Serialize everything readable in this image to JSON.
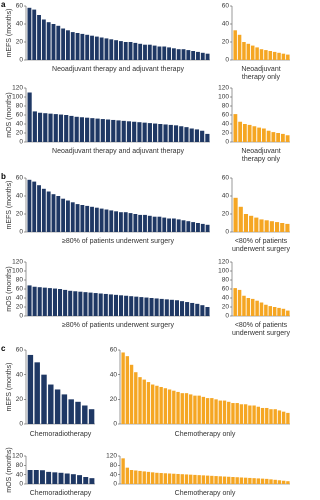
{
  "chart_data": [
    {
      "type": "bar",
      "panel": "a",
      "y_label": "mEFS (months)",
      "x_label": [
        "Neoadjuvant therapy and adjuvant therapy"
      ],
      "color": "#1f3864",
      "ylim": [
        0,
        60
      ],
      "yticks": [
        0,
        20,
        40,
        60
      ],
      "values": [
        58,
        56,
        50,
        45,
        42,
        40,
        38,
        35,
        33,
        31,
        30,
        29,
        28,
        27,
        26,
        25,
        24,
        23,
        22,
        21,
        20,
        20,
        19,
        18,
        17,
        17,
        16,
        15,
        15,
        14,
        13,
        12,
        12,
        11,
        10,
        9,
        8,
        7
      ]
    },
    {
      "type": "bar",
      "x_label": [
        "Neoadjuvant",
        "therapy only"
      ],
      "color": "#f5a623",
      "ylim": [
        0,
        60
      ],
      "yticks": [
        0,
        20,
        40,
        60
      ],
      "values": [
        33,
        28,
        20,
        18,
        16,
        14,
        12,
        11,
        10,
        9,
        8,
        7,
        6
      ]
    },
    {
      "type": "bar",
      "y_label": "mOS (months)",
      "x_label": [
        "Neoadjuvant therapy and adjuvant therapy"
      ],
      "color": "#1f3864",
      "ylim": [
        0,
        120
      ],
      "yticks": [
        0,
        20,
        40,
        60,
        80,
        100,
        120
      ],
      "values": [
        110,
        68,
        65,
        64,
        63,
        62,
        61,
        60,
        58,
        56,
        55,
        54,
        53,
        52,
        51,
        50,
        49,
        48,
        47,
        46,
        45,
        44,
        43,
        42,
        41,
        40,
        39,
        38,
        37,
        35,
        33,
        30,
        28,
        25,
        18
      ]
    },
    {
      "type": "bar",
      "x_label": [
        "Neoadjuvant",
        "therapy only"
      ],
      "color": "#f5a623",
      "ylim": [
        0,
        120
      ],
      "yticks": [
        0,
        20,
        40,
        60,
        80,
        100,
        120
      ],
      "values": [
        62,
        45,
        40,
        38,
        35,
        32,
        30,
        25,
        22,
        20,
        18,
        15
      ]
    },
    {
      "type": "bar",
      "panel": "b",
      "y_label": "mEFS (months)",
      "x_label": [
        "≥80% of patients underwent surgery"
      ],
      "color": "#1f3864",
      "ylim": [
        0,
        60
      ],
      "yticks": [
        0,
        20,
        40,
        60
      ],
      "values": [
        58,
        56,
        52,
        48,
        45,
        42,
        40,
        37,
        35,
        33,
        31,
        30,
        29,
        28,
        27,
        26,
        25,
        24,
        23,
        22,
        22,
        21,
        20,
        19,
        19,
        18,
        17,
        17,
        16,
        15,
        15,
        14,
        13,
        12,
        11,
        10,
        9,
        8
      ]
    },
    {
      "type": "bar",
      "x_label": [
        "<80% of patients",
        "underwent surgery"
      ],
      "color": "#f5a623",
      "ylim": [
        0,
        60
      ],
      "yticks": [
        0,
        20,
        40,
        60
      ],
      "values": [
        38,
        28,
        20,
        18,
        16,
        14,
        13,
        12,
        11,
        10,
        9
      ]
    },
    {
      "type": "bar",
      "y_label": "mOS (months)",
      "x_label": [
        "≥80% of patients underwent surgery"
      ],
      "color": "#1f3864",
      "ylim": [
        0,
        120
      ],
      "yticks": [
        0,
        20,
        40,
        60,
        80,
        100,
        120
      ],
      "values": [
        68,
        65,
        64,
        63,
        62,
        61,
        60,
        58,
        56,
        55,
        54,
        53,
        52,
        51,
        50,
        49,
        48,
        47,
        46,
        45,
        44,
        43,
        42,
        41,
        40,
        39,
        38,
        37,
        36,
        35,
        33,
        31,
        29,
        27,
        24,
        20
      ]
    },
    {
      "type": "bar",
      "x_label": [
        "<80% of patients",
        "underwent surgery"
      ],
      "color": "#f5a623",
      "ylim": [
        0,
        120
      ],
      "yticks": [
        0,
        20,
        40,
        60,
        80,
        100,
        120
      ],
      "values": [
        62,
        58,
        45,
        40,
        38,
        34,
        30,
        25,
        22,
        20,
        18,
        16,
        12
      ]
    },
    {
      "type": "bar",
      "panel": "c",
      "y_label": "mEFS (months)",
      "x_label": [
        "Chemoradiotherapy"
      ],
      "color": "#1f3864",
      "ylim": [
        0,
        60
      ],
      "yticks": [
        0,
        20,
        40,
        60
      ],
      "values": [
        56,
        50,
        40,
        32,
        28,
        24,
        20,
        18,
        15,
        12
      ]
    },
    {
      "type": "bar",
      "x_label": [
        "Chemotherapy only"
      ],
      "color": "#f5a623",
      "ylim": [
        0,
        60
      ],
      "yticks": [
        0,
        20,
        40,
        60
      ],
      "values": [
        58,
        55,
        48,
        42,
        38,
        36,
        34,
        32,
        31,
        30,
        29,
        28,
        27,
        26,
        25,
        25,
        24,
        23,
        23,
        22,
        21,
        21,
        20,
        19,
        19,
        18,
        17,
        17,
        16,
        16,
        15,
        15,
        14,
        13,
        13,
        12,
        12,
        11,
        10,
        9
      ]
    },
    {
      "type": "bar",
      "y_label": "mOS (months)",
      "x_label": [
        "Chemoradiotherapy"
      ],
      "color": "#1f3864",
      "ylim": [
        0,
        120
      ],
      "yticks": [
        0,
        40,
        80,
        120
      ],
      "values": [
        60,
        60,
        59,
        52,
        50,
        48,
        45,
        42,
        38,
        30,
        25
      ]
    },
    {
      "type": "bar",
      "x_label": [
        "Chemotherapy only"
      ],
      "color": "#f5a623",
      "ylim": [
        0,
        120
      ],
      "yticks": [
        0,
        40,
        80,
        120
      ],
      "values": [
        110,
        70,
        60,
        58,
        56,
        54,
        52,
        50,
        48,
        47,
        46,
        45,
        44,
        43,
        42,
        41,
        40,
        39,
        38,
        37,
        36,
        35,
        34,
        33,
        32,
        31,
        30,
        29,
        28,
        27,
        26,
        25,
        24,
        23,
        22,
        20,
        18,
        16,
        14,
        12
      ]
    }
  ]
}
